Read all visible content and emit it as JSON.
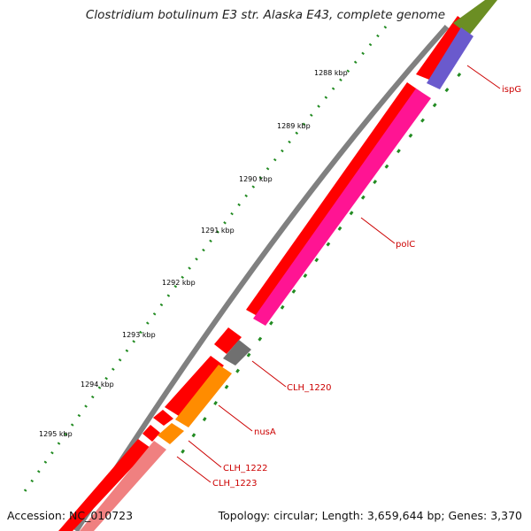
{
  "title": "Clostridium botulinum E3 str. Alaska E43, complete genome",
  "accession": "Accession: NC_010723",
  "summary": "Topology: circular; Length: 3,659,644 bp; Genes: 3,370",
  "ticks": [
    "1288 kbp",
    "1289 kbp",
    "1290 kbp",
    "1291 kbp",
    "1292 kbp",
    "1293 kbp",
    "1294 kbp",
    "1295 kbp"
  ],
  "genes": [
    {
      "name": "ispG",
      "color": "#6a5acd"
    },
    {
      "name": "polC",
      "color": "#ff1493"
    },
    {
      "name": "CLH_1220",
      "color": "#707070"
    },
    {
      "name": "nusA",
      "color": "#ff8c00"
    },
    {
      "name": "CLH_1222",
      "color": "#ff8c00"
    },
    {
      "name": "CLH_1223",
      "color": "#f08080"
    }
  ],
  "colors": {
    "backbone": "#808080",
    "cds_forward": "#ff0000",
    "tick": "#228b22",
    "label": "#cc0000",
    "extra_gene": "#6b8e23"
  }
}
